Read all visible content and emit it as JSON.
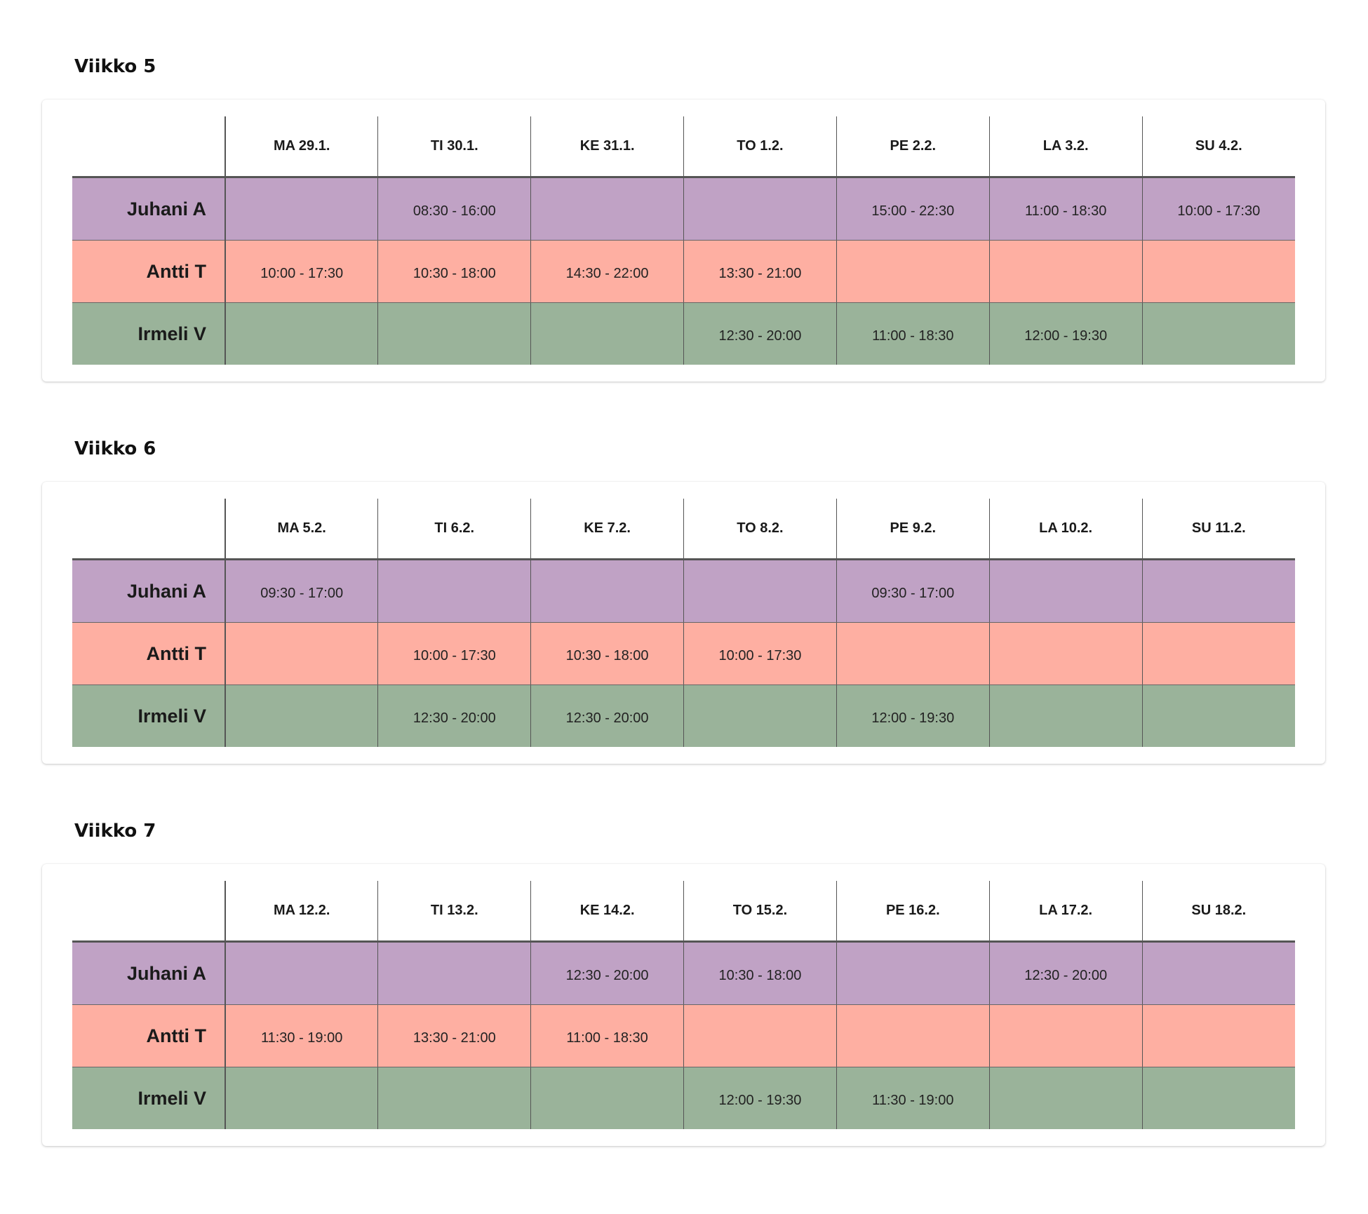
{
  "colors": {
    "juhani": "#c0a2c5",
    "antti": "#feafa2",
    "irmeli": "#9ab39a"
  },
  "weeks": [
    {
      "title": "Viikko 5",
      "days": [
        "MA 29.1.",
        "TI 30.1.",
        "KE 31.1.",
        "TO 1.2.",
        "PE 2.2.",
        "LA 3.2.",
        "SU 4.2."
      ],
      "rows": [
        {
          "name": "Juhani A",
          "color_key": "juhani",
          "shifts": [
            "",
            "08:30 - 16:00",
            "",
            "",
            "15:00 - 22:30",
            "11:00 - 18:30",
            "10:00 - 17:30"
          ]
        },
        {
          "name": "Antti T",
          "color_key": "antti",
          "shifts": [
            "10:00 - 17:30",
            "10:30 - 18:00",
            "14:30 - 22:00",
            "13:30 - 21:00",
            "",
            "",
            ""
          ]
        },
        {
          "name": "Irmeli V",
          "color_key": "irmeli",
          "shifts": [
            "",
            "",
            "",
            "12:30 - 20:00",
            "11:00 - 18:30",
            "12:00 - 19:30",
            ""
          ]
        }
      ]
    },
    {
      "title": "Viikko 6",
      "days": [
        "MA 5.2.",
        "TI 6.2.",
        "KE 7.2.",
        "TO 8.2.",
        "PE 9.2.",
        "LA 10.2.",
        "SU 11.2."
      ],
      "rows": [
        {
          "name": "Juhani A",
          "color_key": "juhani",
          "shifts": [
            "09:30 - 17:00",
            "",
            "",
            "",
            "09:30 - 17:00",
            "",
            ""
          ]
        },
        {
          "name": "Antti T",
          "color_key": "antti",
          "shifts": [
            "",
            "10:00 - 17:30",
            "10:30 - 18:00",
            "10:00 - 17:30",
            "",
            "",
            ""
          ]
        },
        {
          "name": "Irmeli V",
          "color_key": "irmeli",
          "shifts": [
            "",
            "12:30 - 20:00",
            "12:30 - 20:00",
            "",
            "12:00 - 19:30",
            "",
            ""
          ]
        }
      ]
    },
    {
      "title": "Viikko 7",
      "days": [
        "MA 12.2.",
        "TI 13.2.",
        "KE 14.2.",
        "TO 15.2.",
        "PE 16.2.",
        "LA 17.2.",
        "SU 18.2."
      ],
      "rows": [
        {
          "name": "Juhani A",
          "color_key": "juhani",
          "shifts": [
            "",
            "",
            "12:30 - 20:00",
            "10:30 - 18:00",
            "",
            "12:30 - 20:00",
            ""
          ]
        },
        {
          "name": "Antti T",
          "color_key": "antti",
          "shifts": [
            "11:30 - 19:00",
            "13:30 - 21:00",
            "11:00 - 18:30",
            "",
            "",
            "",
            ""
          ]
        },
        {
          "name": "Irmeli V",
          "color_key": "irmeli",
          "shifts": [
            "",
            "",
            "",
            "12:00 - 19:30",
            "11:30 - 19:00",
            "",
            ""
          ]
        }
      ]
    }
  ]
}
